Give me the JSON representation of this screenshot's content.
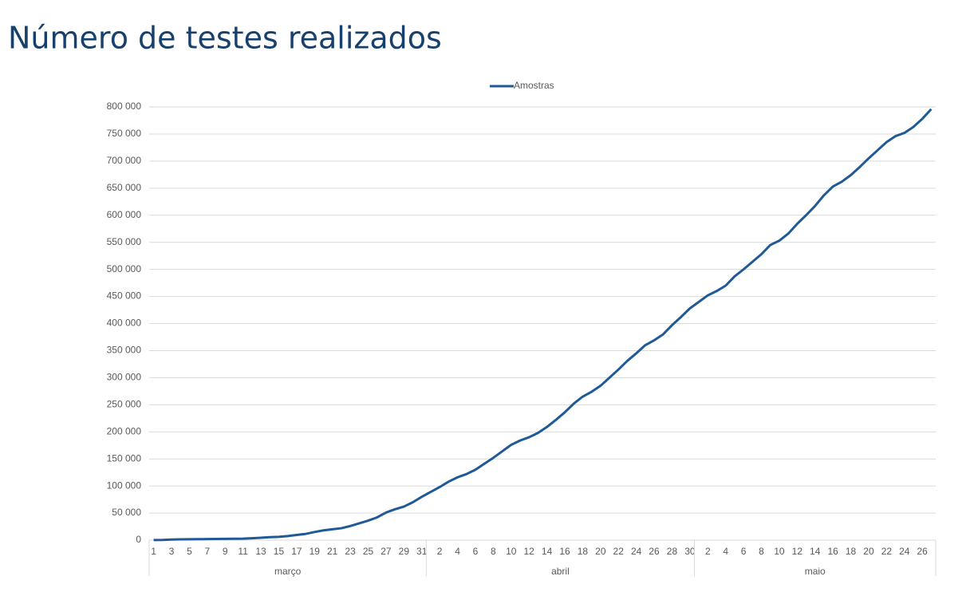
{
  "chart_data": {
    "type": "line",
    "title": "Número de testes realizados",
    "groups": [
      {
        "name": "março",
        "categories": [
          "1",
          null,
          "3",
          null,
          "5",
          null,
          "7",
          null,
          "9",
          null,
          "11",
          null,
          "13",
          null,
          "15",
          null,
          "17",
          null,
          "19",
          null,
          "21",
          null,
          "23",
          null,
          "25",
          null,
          "27",
          null,
          "29",
          null,
          "31"
        ]
      },
      {
        "name": "abril",
        "categories": [
          null,
          "2",
          null,
          "4",
          null,
          "6",
          null,
          "8",
          null,
          "10",
          null,
          "12",
          null,
          "14",
          null,
          "16",
          null,
          "18",
          null,
          "20",
          null,
          "22",
          null,
          "24",
          null,
          "26",
          null,
          "28",
          null,
          "30"
        ]
      },
      {
        "name": "maio",
        "categories": [
          null,
          "2",
          null,
          "4",
          null,
          "6",
          null,
          "8",
          null,
          "10",
          null,
          "12",
          null,
          "14",
          null,
          "16",
          null,
          "18",
          null,
          "20",
          null,
          "22",
          null,
          "24",
          null,
          "26",
          null
        ]
      }
    ],
    "series": [
      {
        "name": "Amostras",
        "color": "#1f5a96",
        "values": [
          200,
          400,
          1200,
          1400,
          1600,
          1800,
          2000,
          2200,
          2400,
          2600,
          2800,
          3500,
          4500,
          5500,
          6000,
          7500,
          9500,
          11500,
          15000,
          18000,
          20000,
          22000,
          26000,
          31000,
          36000,
          42000,
          51000,
          57000,
          62000,
          70000,
          80000,
          89000,
          98000,
          108000,
          116000,
          122000,
          130000,
          141000,
          152000,
          164000,
          176000,
          184000,
          190000,
          198000,
          209000,
          222000,
          236000,
          252000,
          265000,
          274000,
          285000,
          300000,
          315000,
          331000,
          345000,
          360000,
          369000,
          380000,
          397000,
          412000,
          428000,
          440000,
          452000,
          460000,
          470000,
          487000,
          500000,
          514000,
          528000,
          545000,
          553000,
          566000,
          584000,
          600000,
          617000,
          637000,
          653000,
          662000,
          674000,
          689000,
          705000,
          720000,
          735000,
          746000,
          752000,
          763000,
          778000,
          796000
        ]
      }
    ],
    "ylim": [
      0,
      800000
    ],
    "yticks": [
      0,
      {
        "value": 50000,
        "label": "50 000"
      },
      {
        "value": 100000,
        "label": "100 000"
      },
      {
        "value": 150000,
        "label": "150 000"
      },
      {
        "value": 200000,
        "label": "200 000"
      },
      {
        "value": 250000,
        "label": "250 000"
      },
      {
        "value": 300000,
        "label": "300 000"
      },
      {
        "value": 350000,
        "label": "350 000"
      },
      {
        "value": 400000,
        "label": "400 000"
      },
      {
        "value": 450000,
        "label": "450 000"
      },
      {
        "value": 500000,
        "label": "500 000"
      },
      {
        "value": 550000,
        "label": "550 000"
      },
      {
        "value": 600000,
        "label": "600 000"
      },
      {
        "value": 650000,
        "label": "650 000"
      },
      {
        "value": 700000,
        "label": "700 000"
      },
      {
        "value": 750000,
        "label": "750 000"
      },
      {
        "value": 800000,
        "label": "800 000"
      }
    ],
    "grid": true,
    "legend": "top"
  }
}
